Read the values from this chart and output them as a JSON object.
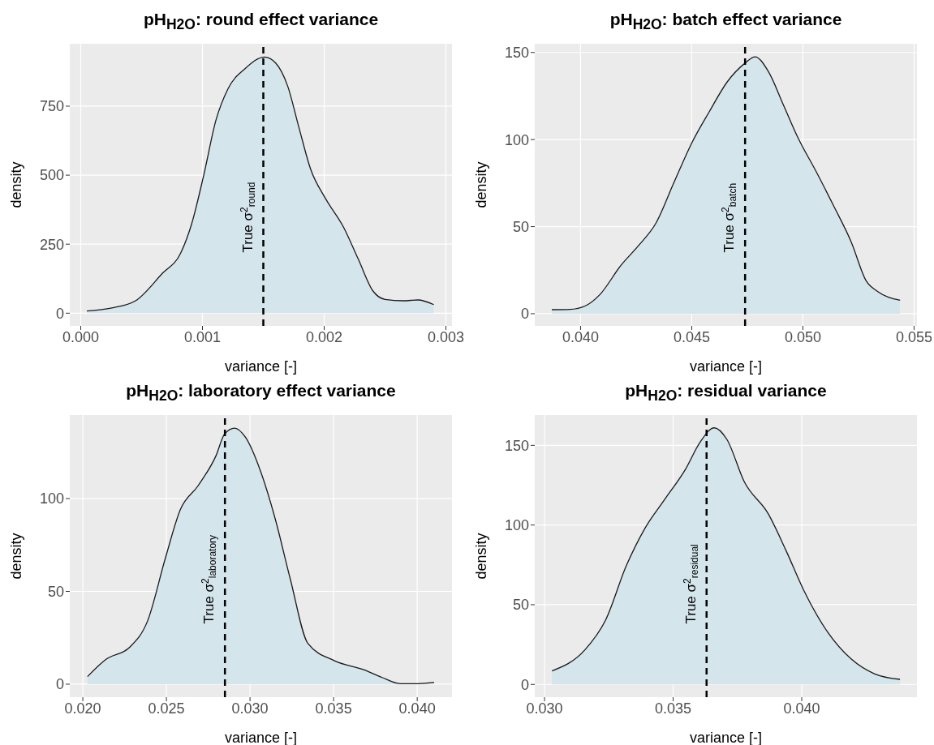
{
  "chart_data": [
    {
      "type": "area",
      "title": "pH$_{H2O}$: round effect variance",
      "xlabel": "variance [-]",
      "ylabel": "density",
      "grid": true,
      "x": [
        5e-05,
        0.000256,
        0.00045,
        0.00067,
        0.00082,
        0.00091,
        0.00101,
        0.00111,
        0.00121,
        0.00135,
        0.00151,
        0.0016,
        0.0017,
        0.00179,
        0.00189,
        0.00201,
        0.00216,
        0.00228,
        0.0024,
        0.0025,
        0.00265,
        0.00277,
        0.0029
      ],
      "series": [
        {
          "color": "#d4e5ec",
          "values": [
            8,
            19,
            45,
            144,
            217,
            322,
            499,
            698,
            813,
            886,
            928,
            907,
            823,
            677,
            520,
            416,
            311,
            196,
            81,
            50,
            45,
            48,
            31
          ]
        }
      ],
      "xlim": [
        -9e-05,
        0.00305
      ],
      "ylim": [
        -46,
        976
      ],
      "xticks": [
        {
          "value": 0,
          "label": "0.000"
        },
        {
          "value": 0.001,
          "label": "0.001"
        },
        {
          "value": 0.002,
          "label": "0.002"
        },
        {
          "value": 0.003,
          "label": "0.003"
        }
      ],
      "yticks": [
        0,
        250,
        500,
        750
      ],
      "ref_lines": [
        {
          "axis": "x",
          "value": 0.0015,
          "label": "True σ$^{2}$$_{round}$",
          "line_style": "dashed"
        }
      ]
    },
    {
      "type": "area",
      "title": "pH$_{H2O}$: batch effect variance",
      "xlabel": "variance [-]",
      "ylabel": "density",
      "grid": true,
      "x": [
        0.03871,
        0.03953,
        0.0402,
        0.04087,
        0.0418,
        0.0426,
        0.04339,
        0.04419,
        0.045,
        0.04579,
        0.04659,
        0.04741,
        0.04785,
        0.04845,
        0.04912,
        0.04978,
        0.05058,
        0.05138,
        0.05218,
        0.05284,
        0.05337,
        0.05437
      ],
      "series": [
        {
          "color": "#d4e5ec",
          "values": [
            2.3,
            2.5,
            4.4,
            11,
            27.5,
            39,
            52,
            75,
            98,
            116,
            133,
            144,
            147.5,
            139,
            120,
            101,
            82,
            62,
            41,
            19,
            12.7,
            7.7
          ]
        }
      ],
      "xlim": [
        0.03794,
        0.05513
      ],
      "ylim": [
        -7,
        155
      ],
      "xticks": [
        {
          "value": 0.04,
          "label": "0.040"
        },
        {
          "value": 0.045,
          "label": "0.045"
        },
        {
          "value": 0.05,
          "label": "0.050"
        },
        {
          "value": 0.055,
          "label": "0.055"
        }
      ],
      "yticks": [
        0,
        50,
        100,
        150
      ],
      "ref_lines": [
        {
          "axis": "x",
          "value": 0.0474,
          "label": "True σ$^{2}$$_{batch}$",
          "line_style": "dashed"
        }
      ]
    },
    {
      "type": "area",
      "title": "pH$_{H2O}$: laboratory effect variance",
      "xlabel": "variance [-]",
      "ylabel": "density",
      "grid": true,
      "x": [
        0.02028,
        0.02139,
        0.02281,
        0.02387,
        0.02494,
        0.02583,
        0.0269,
        0.02796,
        0.02849,
        0.02908,
        0.02973,
        0.03062,
        0.03151,
        0.0324,
        0.03346,
        0.03506,
        0.03684,
        0.0379,
        0.03897,
        0.04004,
        0.04101
      ],
      "series": [
        {
          "color": "#d4e5ec",
          "values": [
            4.1,
            13.4,
            20,
            34,
            68,
            94,
            107,
            123,
            135,
            138,
            133,
            115,
            89,
            57,
            22,
            12.6,
            7.7,
            3.6,
            0.3,
            0.3,
            1
          ]
        }
      ],
      "xlim": [
        0.01922,
        0.04208
      ],
      "ylim": [
        -7,
        145
      ],
      "xticks": [
        {
          "value": 0.02,
          "label": "0.020"
        },
        {
          "value": 0.025,
          "label": "0.025"
        },
        {
          "value": 0.03,
          "label": "0.030"
        },
        {
          "value": 0.035,
          "label": "0.035"
        },
        {
          "value": 0.04,
          "label": "0.040"
        }
      ],
      "yticks": [
        0,
        50,
        100
      ],
      "ref_lines": [
        {
          "axis": "x",
          "value": 0.0285,
          "label": "True σ$^{2}$$_{laboratory}$",
          "line_style": "dashed"
        }
      ]
    },
    {
      "type": "area",
      "title": "pH$_{H2O}$: residual variance",
      "xlabel": "variance [-]",
      "ylabel": "density",
      "grid": true,
      "x": [
        0.03029,
        0.03157,
        0.03238,
        0.03318,
        0.03387,
        0.03467,
        0.03548,
        0.03605,
        0.0366,
        0.03708,
        0.03777,
        0.0387,
        0.03939,
        0.04008,
        0.041,
        0.04192,
        0.04284,
        0.04382
      ],
      "series": [
        {
          "color": "#d4e5ec",
          "values": [
            8.5,
            21.7,
            40.6,
            74.5,
            97,
            116,
            135,
            152,
            161,
            154,
            127,
            107,
            84,
            59,
            33,
            16,
            6.6,
            3.2
          ]
        }
      ],
      "xlim": [
        0.02962,
        0.04448
      ],
      "ylim": [
        -8,
        169
      ],
      "xticks": [
        {
          "value": 0.03,
          "label": "0.030"
        },
        {
          "value": 0.035,
          "label": "0.035"
        },
        {
          "value": 0.04,
          "label": "0.040"
        }
      ],
      "yticks": [
        0,
        50,
        100,
        150
      ],
      "ref_lines": [
        {
          "axis": "x",
          "value": 0.0363,
          "label": "True σ$^{2}$$_{residual}$",
          "line_style": "dashed"
        }
      ]
    }
  ]
}
